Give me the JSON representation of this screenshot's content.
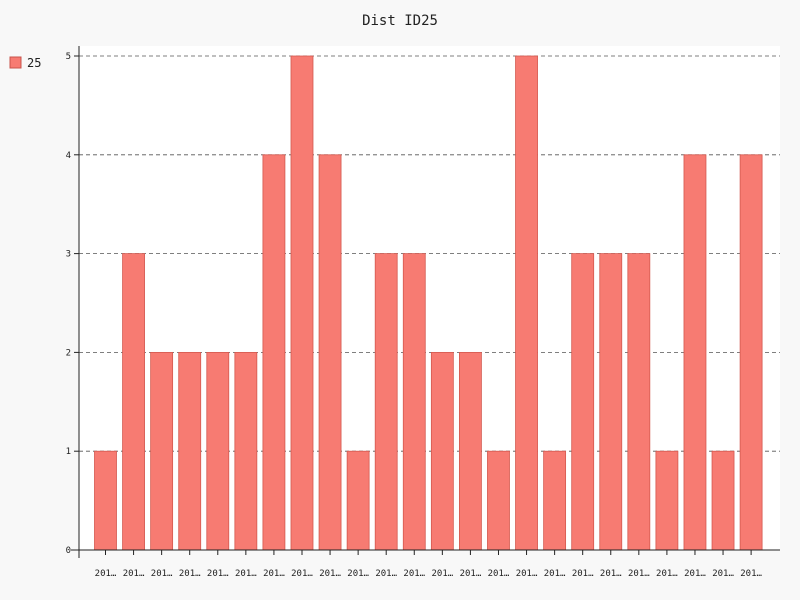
{
  "chart_data": {
    "type": "bar",
    "title": "Dist ID25",
    "xlabel": "",
    "ylabel": "",
    "ylim": [
      0,
      5
    ],
    "yticks": [
      "0",
      "1",
      "2",
      "3",
      "4",
      "5"
    ],
    "grid": true,
    "legend_position": "top-left",
    "categories": [
      "201…",
      "201…",
      "201…",
      "201…",
      "201…",
      "201…",
      "201…",
      "201…",
      "201…",
      "201…",
      "201…",
      "201…",
      "201…",
      "201…",
      "201…",
      "201…",
      "201…",
      "201…",
      "201…",
      "201…",
      "201…",
      "201…",
      "201…",
      "201…"
    ],
    "series": [
      {
        "name": "25",
        "color": "#f77b72",
        "values": [
          1,
          3,
          2,
          2,
          2,
          2,
          4,
          5,
          4,
          1,
          3,
          3,
          2,
          2,
          1,
          5,
          1,
          3,
          3,
          3,
          1,
          4,
          1,
          4
        ]
      }
    ]
  }
}
